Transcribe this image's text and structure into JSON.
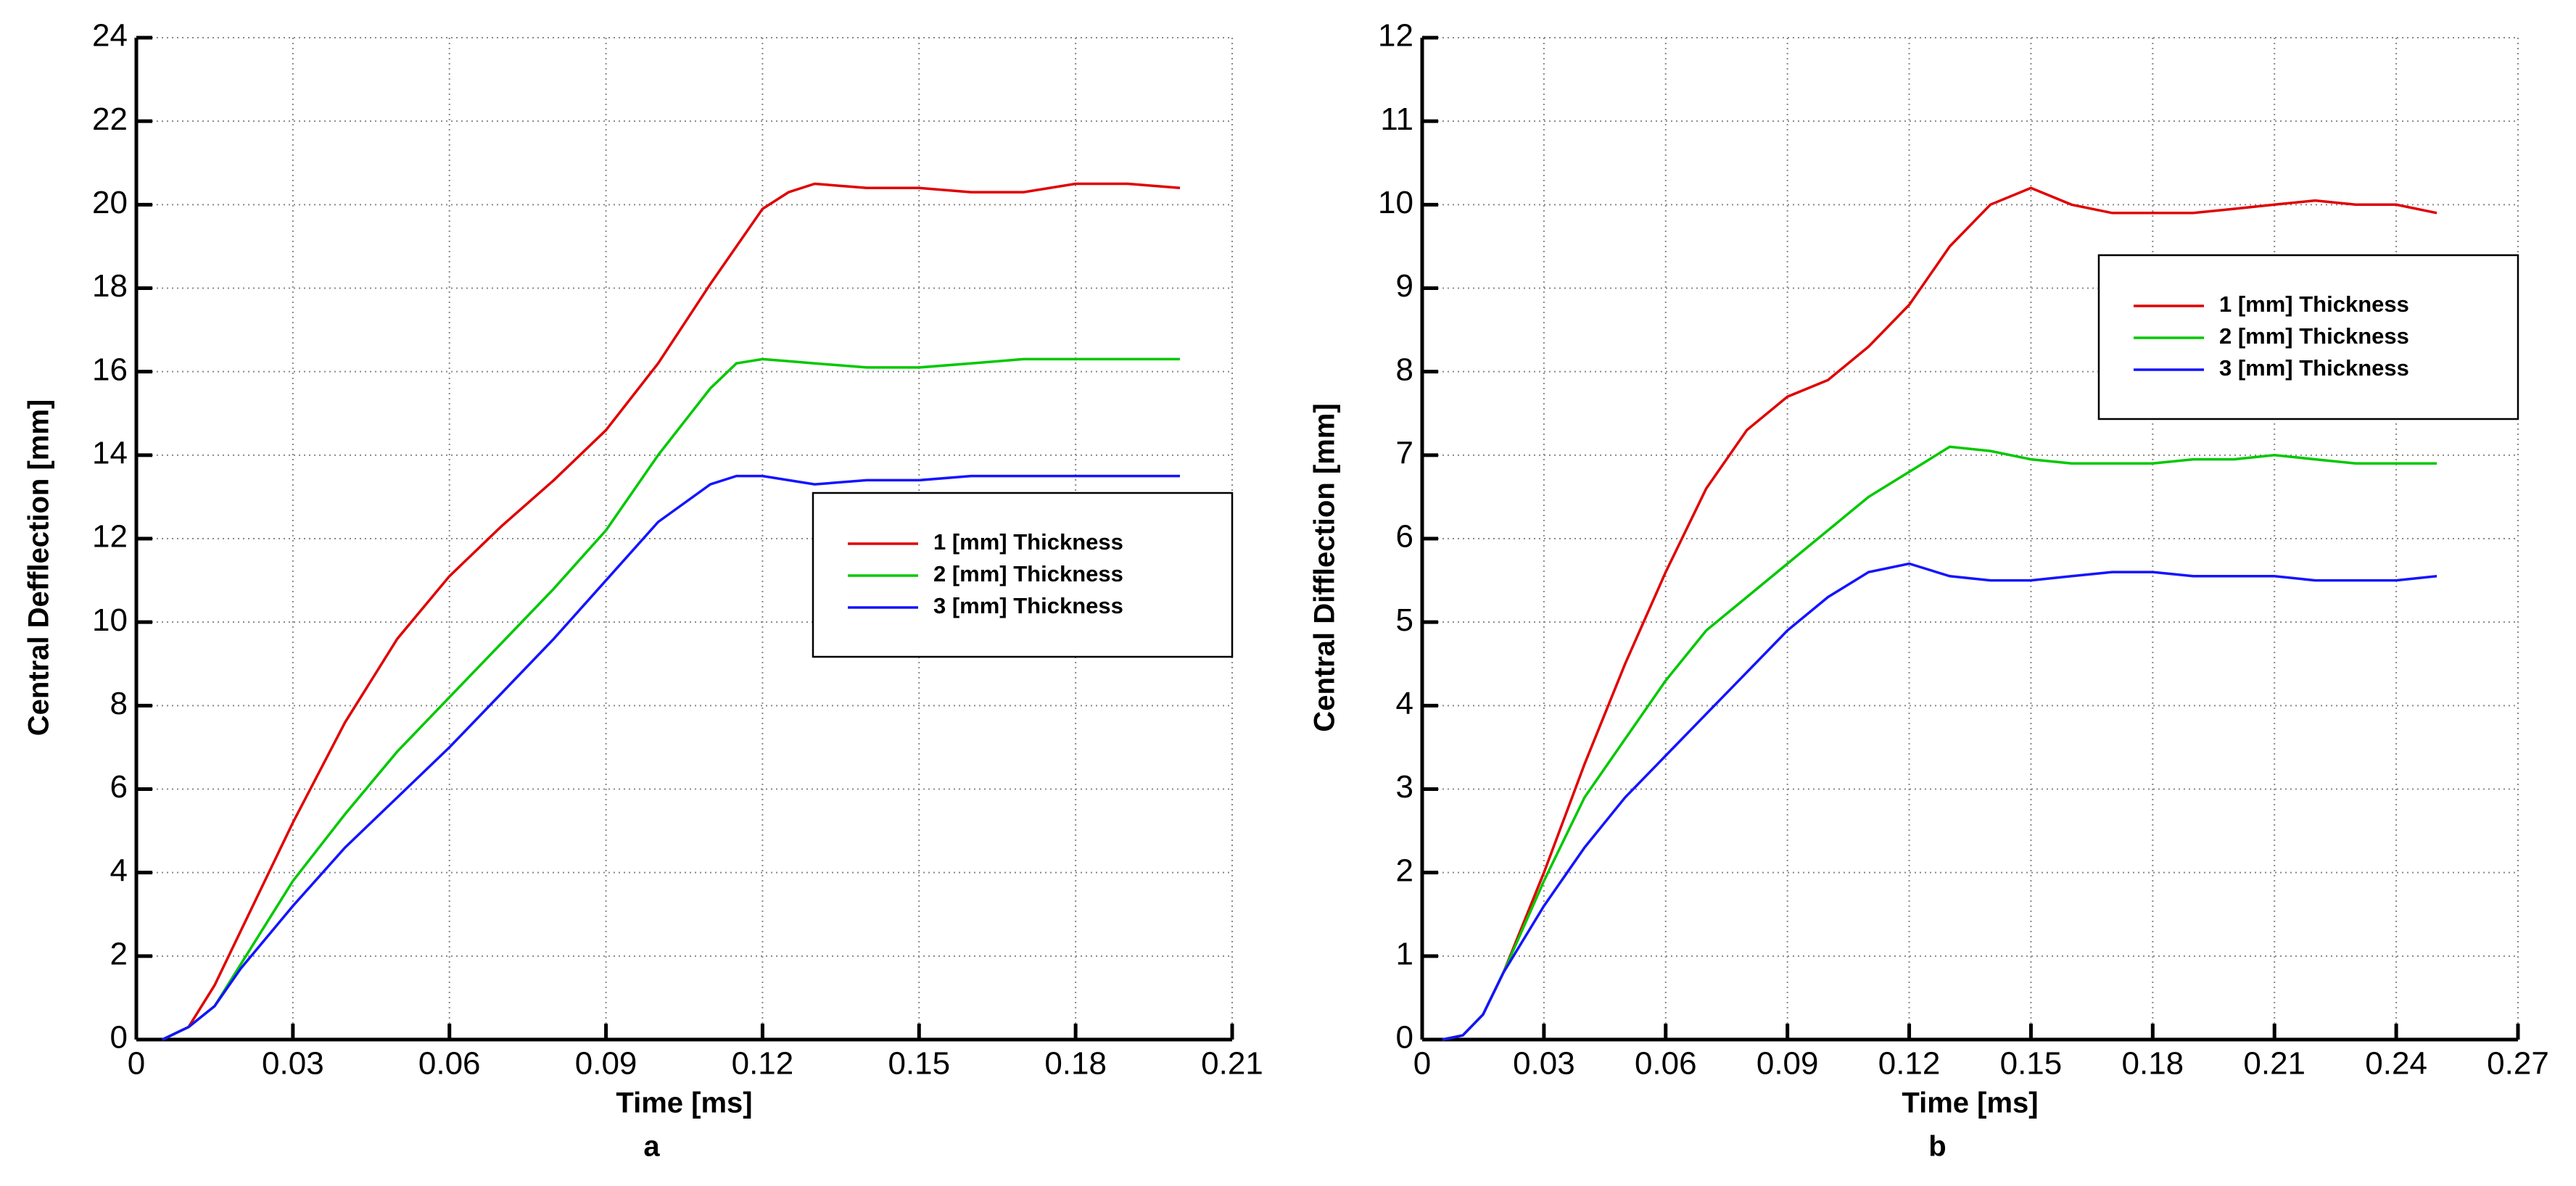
{
  "chart_data": [
    {
      "type": "line",
      "caption": "a",
      "xlabel": "Time [ms]",
      "ylabel": "Central Defflection [mm]",
      "x": [
        0.005,
        0.01,
        0.015,
        0.02,
        0.03,
        0.04,
        0.05,
        0.06,
        0.07,
        0.08,
        0.09,
        0.1,
        0.11,
        0.115,
        0.12,
        0.125,
        0.13,
        0.14,
        0.15,
        0.16,
        0.17,
        0.18,
        0.19,
        0.2
      ],
      "series": [
        {
          "name": "1 [mm] Thickness",
          "color": "#e00000",
          "values": [
            0,
            0.3,
            1.3,
            2.6,
            5.2,
            7.6,
            9.6,
            11.1,
            12.3,
            13.4,
            14.6,
            16.2,
            18.1,
            19.0,
            19.9,
            20.3,
            20.5,
            20.4,
            20.4,
            20.3,
            20.3,
            20.5,
            20.5,
            20.4
          ]
        },
        {
          "name": "2 [mm] Thickness",
          "color": "#00c800",
          "values": [
            0,
            0.3,
            0.8,
            1.8,
            3.8,
            5.4,
            6.9,
            8.2,
            9.5,
            10.8,
            12.2,
            14.0,
            15.6,
            16.2,
            16.3,
            16.25,
            16.2,
            16.1,
            16.1,
            16.2,
            16.3,
            16.3,
            16.3,
            16.3
          ]
        },
        {
          "name": "3 [mm] Thickness",
          "color": "#1414ff",
          "values": [
            0,
            0.3,
            0.8,
            1.7,
            3.2,
            4.6,
            5.8,
            7.0,
            8.3,
            9.6,
            11.0,
            12.4,
            13.3,
            13.5,
            13.5,
            13.4,
            13.3,
            13.4,
            13.4,
            13.5,
            13.5,
            13.5,
            13.5,
            13.5
          ]
        }
      ],
      "xlim": [
        0,
        0.21
      ],
      "xticks": [
        0,
        0.03,
        0.06,
        0.09,
        0.12,
        0.15,
        0.18,
        0.21
      ],
      "ylim": [
        0,
        24
      ],
      "yticks": [
        0,
        2,
        4,
        6,
        8,
        10,
        12,
        14,
        16,
        18,
        20,
        22,
        24
      ],
      "grid": true,
      "legend_position": "center right"
    },
    {
      "type": "line",
      "caption": "b",
      "xlabel": "Time [ms]",
      "ylabel": "Central Difflection [mm]",
      "x": [
        0.005,
        0.01,
        0.015,
        0.02,
        0.03,
        0.04,
        0.05,
        0.06,
        0.07,
        0.08,
        0.09,
        0.1,
        0.11,
        0.12,
        0.13,
        0.14,
        0.15,
        0.16,
        0.17,
        0.18,
        0.19,
        0.2,
        0.21,
        0.22,
        0.23,
        0.24,
        0.25
      ],
      "series": [
        {
          "name": "1 [mm] Thickness",
          "color": "#e00000",
          "values": [
            0,
            0.05,
            0.3,
            0.8,
            2.0,
            3.3,
            4.5,
            5.6,
            6.6,
            7.3,
            7.7,
            7.9,
            8.3,
            8.8,
            9.5,
            10.0,
            10.2,
            10.0,
            9.9,
            9.9,
            9.9,
            9.95,
            10.0,
            10.05,
            10.0,
            10.0,
            9.9
          ]
        },
        {
          "name": "2 [mm] Thickness",
          "color": "#00c800",
          "values": [
            0,
            0.05,
            0.3,
            0.8,
            1.9,
            2.9,
            3.6,
            4.3,
            4.9,
            5.3,
            5.7,
            6.1,
            6.5,
            6.8,
            7.1,
            7.05,
            6.95,
            6.9,
            6.9,
            6.9,
            6.95,
            6.95,
            7.0,
            6.95,
            6.9,
            6.9,
            6.9
          ]
        },
        {
          "name": "3 [mm] Thickness",
          "color": "#1414ff",
          "values": [
            0,
            0.05,
            0.3,
            0.8,
            1.6,
            2.3,
            2.9,
            3.4,
            3.9,
            4.4,
            4.9,
            5.3,
            5.6,
            5.7,
            5.55,
            5.5,
            5.5,
            5.55,
            5.6,
            5.6,
            5.55,
            5.55,
            5.55,
            5.5,
            5.5,
            5.5,
            5.55
          ]
        }
      ],
      "xlim": [
        0,
        0.27
      ],
      "xticks": [
        0,
        0.03,
        0.06,
        0.09,
        0.12,
        0.15,
        0.18,
        0.21,
        0.24,
        0.27
      ],
      "ylim": [
        0,
        12
      ],
      "yticks": [
        0,
        1,
        2,
        3,
        4,
        5,
        6,
        7,
        8,
        9,
        10,
        11,
        12
      ],
      "grid": true,
      "legend_position": "upper right"
    }
  ]
}
